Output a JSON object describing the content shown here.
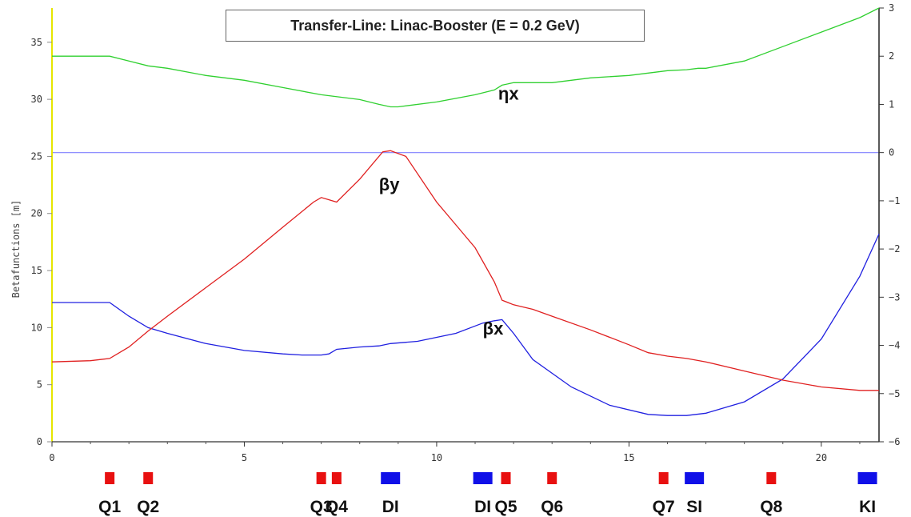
{
  "chart_data": {
    "type": "line",
    "title": "Transfer-Line: Linac-Booster (E = 0.2 GeV)",
    "ylabel": "Betafunctions [m]",
    "xlabel": "",
    "xlim": [
      0,
      21.5
    ],
    "ylim": [
      0,
      38
    ],
    "y2lim": [
      -6,
      3
    ],
    "x_ticks": [
      0,
      5,
      10,
      15,
      20
    ],
    "y_ticks": [
      0,
      5,
      10,
      15,
      20,
      25,
      30,
      35
    ],
    "y2_ticks": [
      -6,
      -5,
      -4,
      -3,
      -2,
      -1,
      0,
      1,
      2,
      3
    ],
    "colors": {
      "betax": "#2020e0",
      "betay": "#e02020",
      "etax": "#30d030",
      "zero_line": "#8080ff",
      "left_axis": "#e6e600",
      "right_axis": "#222222"
    },
    "series": [
      {
        "name": "βx",
        "axis": "left",
        "color": "#2020e0",
        "x": [
          0,
          1.2,
          1.5,
          2.0,
          2.5,
          3.0,
          4.0,
          5.0,
          6.0,
          6.5,
          7.0,
          7.2,
          7.4,
          8.0,
          8.5,
          8.8,
          9.5,
          10.5,
          11.2,
          11.5,
          11.7,
          12.0,
          12.5,
          13.5,
          14.5,
          15.5,
          16.0,
          16.5,
          17.0,
          18.0,
          19.0,
          20.0,
          21.0,
          21.5
        ],
        "y": [
          12.2,
          12.2,
          12.2,
          11.0,
          10.0,
          9.5,
          8.6,
          8.0,
          7.7,
          7.6,
          7.6,
          7.7,
          8.1,
          8.3,
          8.4,
          8.6,
          8.8,
          9.5,
          10.4,
          10.6,
          10.7,
          9.5,
          7.2,
          4.8,
          3.2,
          2.4,
          2.3,
          2.3,
          2.5,
          3.5,
          5.5,
          9.0,
          14.5,
          18.2
        ]
      },
      {
        "name": "βy",
        "axis": "left",
        "color": "#e02020",
        "x": [
          0,
          1.0,
          1.5,
          2.0,
          2.5,
          3.0,
          4.0,
          5.0,
          6.0,
          6.8,
          7.0,
          7.2,
          7.4,
          8.0,
          8.6,
          8.8,
          9.2,
          10.0,
          10.5,
          11.0,
          11.5,
          11.7,
          12.0,
          12.5,
          13.0,
          14.0,
          15.0,
          15.5,
          16.0,
          16.5,
          17.0,
          18.0,
          19.0,
          20.0,
          21.0,
          21.5
        ],
        "y": [
          7.0,
          7.1,
          7.3,
          8.3,
          9.7,
          11.0,
          13.5,
          16.0,
          18.8,
          21.0,
          21.4,
          21.2,
          21.0,
          23.0,
          25.4,
          25.5,
          25.0,
          21.0,
          19.0,
          17.0,
          14.0,
          12.4,
          12.0,
          11.6,
          11.0,
          9.8,
          8.5,
          7.8,
          7.5,
          7.3,
          7.0,
          6.2,
          5.4,
          4.8,
          4.5,
          4.5
        ]
      },
      {
        "name": "ηx",
        "axis": "right",
        "color": "#30d030",
        "x": [
          0,
          1.0,
          1.5,
          2.0,
          2.5,
          3.0,
          4.0,
          5.0,
          6.0,
          7.0,
          8.0,
          8.5,
          8.8,
          9.0,
          10.0,
          11.0,
          11.5,
          11.7,
          12.0,
          13.0,
          14.0,
          15.0,
          16.0,
          16.5,
          16.8,
          17.0,
          18.0,
          19.0,
          20.0,
          21.0,
          21.5
        ],
        "y": [
          2.0,
          2.0,
          2.0,
          1.9,
          1.8,
          1.75,
          1.6,
          1.5,
          1.35,
          1.2,
          1.1,
          1.0,
          0.95,
          0.95,
          1.05,
          1.2,
          1.3,
          1.4,
          1.45,
          1.45,
          1.55,
          1.6,
          1.7,
          1.72,
          1.75,
          1.75,
          1.9,
          2.2,
          2.5,
          2.8,
          3.0
        ]
      }
    ],
    "curve_labels": [
      "βx",
      "βy",
      "ηx"
    ],
    "elements": [
      {
        "label": "Q1",
        "x": 1.5,
        "kind": "quad",
        "color": "#e81010"
      },
      {
        "label": "Q2",
        "x": 2.5,
        "kind": "quad",
        "color": "#e81010"
      },
      {
        "label": "Q3",
        "x": 7.0,
        "kind": "quad",
        "color": "#e81010"
      },
      {
        "label": "Q4",
        "x": 7.4,
        "kind": "quad",
        "color": "#e81010"
      },
      {
        "label": "DI",
        "x": 8.8,
        "kind": "dipole",
        "color": "#1010e8"
      },
      {
        "label": "DI",
        "x": 11.2,
        "kind": "dipole",
        "color": "#1010e8"
      },
      {
        "label": "Q5",
        "x": 11.8,
        "kind": "quad",
        "color": "#e81010"
      },
      {
        "label": "Q6",
        "x": 13.0,
        "kind": "quad",
        "color": "#e81010"
      },
      {
        "label": "Q7",
        "x": 15.9,
        "kind": "quad",
        "color": "#e81010"
      },
      {
        "label": "SI",
        "x": 16.7,
        "kind": "dipole",
        "color": "#1010e8"
      },
      {
        "label": "Q8",
        "x": 18.7,
        "kind": "quad",
        "color": "#e81010"
      },
      {
        "label": "KI",
        "x": 21.2,
        "kind": "dipole",
        "color": "#1010e8"
      }
    ]
  }
}
